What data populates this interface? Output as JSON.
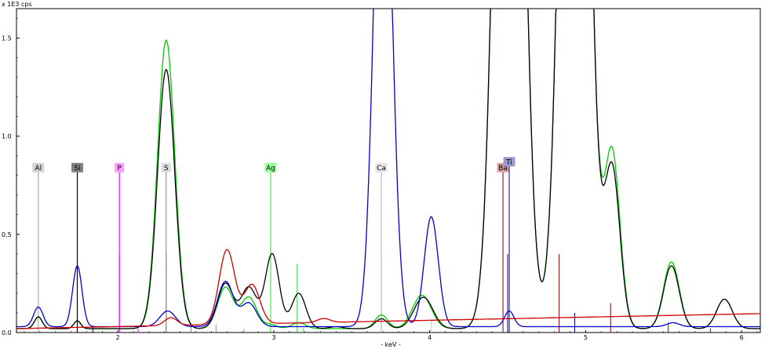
{
  "chart_data": {
    "type": "line",
    "yunit_label": "x 1E3 cps",
    "xlabel": "- keV -",
    "xlim": [
      1.35,
      6.12
    ],
    "ylim": [
      0,
      1.65
    ],
    "x_ticks": [
      2,
      3,
      4,
      5,
      6
    ],
    "y_ticks": [
      0.0,
      0.5,
      1.0,
      1.5
    ],
    "x_tick_labels": [
      "2",
      "3",
      "4",
      "5",
      "6"
    ],
    "y_tick_labels": [
      "0.0",
      "0.5",
      "1.0",
      "1.5"
    ],
    "grid": false,
    "series": [
      {
        "color": "#00cc00",
        "baseline": 0.02,
        "peaks": [
          [
            1.49,
            0.025,
            0.06
          ],
          [
            1.74,
            0.022,
            0.04
          ],
          [
            2.31,
            0.055,
            1.47
          ],
          [
            2.69,
            0.05,
            0.21
          ],
          [
            2.84,
            0.05,
            0.16
          ],
          [
            2.98,
            0.04,
            0.02
          ],
          [
            3.16,
            0.045,
            0.03
          ],
          [
            3.69,
            0.04,
            0.07
          ],
          [
            3.95,
            0.06,
            0.17
          ],
          [
            4.51,
            0.075,
            6.0
          ],
          [
            4.93,
            0.075,
            6.0
          ],
          [
            5.17,
            0.05,
            0.89
          ],
          [
            5.55,
            0.05,
            0.34
          ],
          [
            5.89,
            0.05,
            0.15
          ]
        ]
      },
      {
        "color": "#000000",
        "baseline": 0.02,
        "peaks": [
          [
            1.49,
            0.025,
            0.06
          ],
          [
            1.74,
            0.022,
            0.04
          ],
          [
            2.31,
            0.055,
            1.32
          ],
          [
            2.69,
            0.05,
            0.23
          ],
          [
            2.84,
            0.05,
            0.21
          ],
          [
            2.99,
            0.045,
            0.38
          ],
          [
            3.16,
            0.045,
            0.18
          ],
          [
            3.4,
            0.04,
            0.01
          ],
          [
            3.69,
            0.04,
            0.05
          ],
          [
            3.96,
            0.06,
            0.16
          ],
          [
            4.51,
            0.075,
            6.0
          ],
          [
            4.93,
            0.075,
            6.0
          ],
          [
            5.17,
            0.05,
            0.81
          ],
          [
            5.55,
            0.05,
            0.32
          ],
          [
            5.89,
            0.05,
            0.15
          ]
        ]
      },
      {
        "color": "#0000cc",
        "baseline": 0.03,
        "peaks": [
          [
            1.49,
            0.03,
            0.1
          ],
          [
            1.74,
            0.03,
            0.31
          ],
          [
            2.32,
            0.05,
            0.08
          ],
          [
            2.69,
            0.05,
            0.23
          ],
          [
            2.84,
            0.05,
            0.12
          ],
          [
            3.7,
            0.055,
            3.0
          ],
          [
            4.01,
            0.045,
            0.56
          ],
          [
            4.51,
            0.03,
            0.08
          ],
          [
            5.56,
            0.04,
            0.02
          ]
        ]
      },
      {
        "color": "#cc0000",
        "baseline": 0.02,
        "slope": 0.016,
        "peaks": [
          [
            2.34,
            0.04,
            0.04
          ],
          [
            2.7,
            0.05,
            0.38
          ],
          [
            2.86,
            0.05,
            0.2
          ],
          [
            3.32,
            0.04,
            0.02
          ]
        ]
      }
    ],
    "element_markers": [
      {
        "symbol": "Al",
        "energy": 1.49,
        "color": "#999999",
        "bg": "#d3d3d3",
        "text_color": "#000000",
        "height": 0.84,
        "line_width": 1
      },
      {
        "symbol": "Si",
        "energy": 1.74,
        "color": "#000000",
        "bg": "#808080",
        "text_color": "#000000",
        "height": 0.84,
        "line_width": 1.2
      },
      {
        "symbol": "P",
        "energy": 2.01,
        "color": "#ff00ff",
        "bg": "#ff9cff",
        "text_color": "#000000",
        "height": 0.84,
        "line_width": 1.2
      },
      {
        "symbol": "S",
        "energy": 2.31,
        "color": "#808080",
        "bg": "#dcdcdc",
        "text_color": "#000000",
        "height": 0.84,
        "line_width": 1
      },
      {
        "symbol": "Ag",
        "energy": 2.98,
        "color": "#33dd33",
        "bg": "#99ff99",
        "text_color": "#000000",
        "height": 0.84,
        "line_width": 1
      },
      {
        "symbol": "Ca",
        "energy": 3.69,
        "color": "#b0b0b0",
        "bg": "#e6e6e6",
        "text_color": "#000000",
        "height": 0.84,
        "line_width": 1
      },
      {
        "symbol": "Ba",
        "energy": 4.47,
        "color": "#8b0000",
        "bg": "#d4a0a0",
        "text_color": "#000000",
        "height": 0.84,
        "line_width": 1
      },
      {
        "symbol": "Ti",
        "energy": 4.51,
        "color": "#00008b",
        "bg": "#9a9ad0",
        "text_color": "#000000",
        "height": 0.87,
        "line_width": 1
      }
    ],
    "marker_ticks": [
      {
        "x": 2.01,
        "y": 0.4,
        "color": "#ff00ff"
      },
      {
        "x": 2.31,
        "y": 0.4,
        "color": "#808080"
      },
      {
        "x": 3.15,
        "y": 0.35,
        "color": "#33dd33"
      },
      {
        "x": 2.63,
        "y": 0.04,
        "color": "#33dd33"
      },
      {
        "x": 2.81,
        "y": 0.02,
        "color": "#33dd33"
      },
      {
        "x": 3.19,
        "y": 0.02,
        "color": "#33dd33"
      },
      {
        "x": 3.69,
        "y": 0.4,
        "color": "#c8c8c8"
      },
      {
        "x": 4.01,
        "y": 0.06,
        "color": "#c8c8c8"
      },
      {
        "x": 4.83,
        "y": 0.4,
        "color": "#8b0000"
      },
      {
        "x": 5.16,
        "y": 0.15,
        "color": "#8b0000"
      },
      {
        "x": 5.53,
        "y": 0.05,
        "color": "#8b0000"
      },
      {
        "x": 5.8,
        "y": 0.02,
        "color": "#8b0000"
      },
      {
        "x": 4.93,
        "y": 0.1,
        "color": "#00008b"
      },
      {
        "x": 4.5,
        "y": 0.4,
        "color": "#00008b"
      },
      {
        "x": 1.84,
        "y": 0.03,
        "color": "#000000"
      },
      {
        "x": 2.13,
        "y": 0.02,
        "color": "#ff00ff"
      },
      {
        "x": 2.47,
        "y": 0.03,
        "color": "#808080"
      }
    ]
  }
}
